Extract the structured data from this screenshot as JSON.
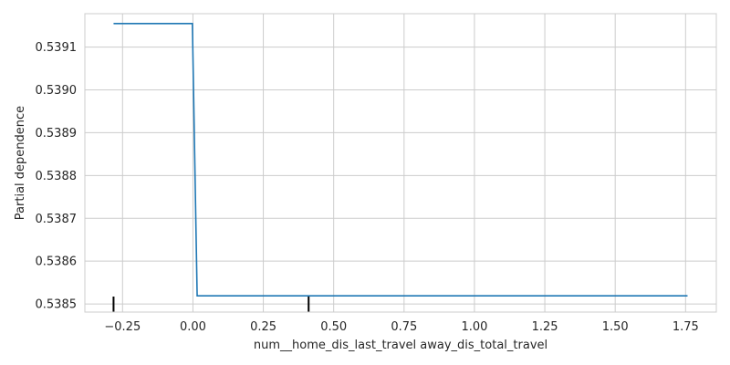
{
  "chart_data": {
    "type": "line",
    "title": "",
    "xlabel": "num__home_dis_last_travel away_dis_total_travel",
    "ylabel": "Partial dependence",
    "xlim": [
      -0.3839,
      1.8592
    ],
    "ylim": [
      0.538481,
      0.539178
    ],
    "grid": true,
    "line_color": "#1f77b4",
    "rug_color": "#000000",
    "x_ticks": [
      -0.25,
      0.0,
      0.25,
      0.5,
      0.75,
      1.0,
      1.25,
      1.5,
      1.75
    ],
    "x_tick_labels": [
      "−0.25",
      "0.00",
      "0.25",
      "0.50",
      "0.75",
      "1.00",
      "1.25",
      "1.50",
      "1.75"
    ],
    "y_ticks": [
      0.5385,
      0.5386,
      0.5387,
      0.5388,
      0.5389,
      0.539,
      0.5391
    ],
    "y_tick_labels": [
      "0.5385",
      "0.5386",
      "0.5387",
      "0.5388",
      "0.5389",
      "0.5390",
      "0.5391"
    ],
    "series": [
      {
        "x": [
          -0.282,
          -0.002,
          0.015,
          1.757
        ],
        "y": [
          0.539155,
          0.539155,
          0.538519,
          0.538519
        ]
      }
    ],
    "rug_x": [
      -0.282,
      0.411
    ]
  }
}
